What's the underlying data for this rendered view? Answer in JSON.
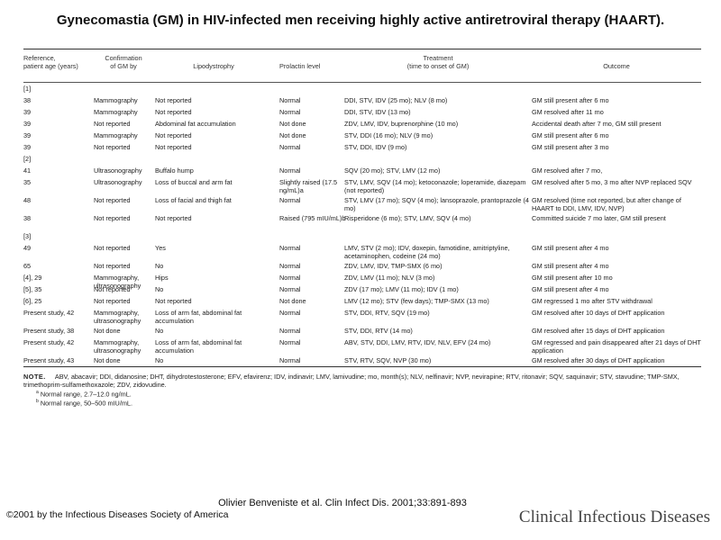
{
  "title": "Gynecomastia (GM) in HIV-infected men receiving highly active antiretroviral therapy (HAART).",
  "table": {
    "headers": {
      "ref": [
        "Reference,",
        "patient age (years)"
      ],
      "confirm": [
        "Confirmation",
        "of GM by"
      ],
      "lipo": "Lipodystrophy",
      "prolactin": "Prolactin level",
      "treatment": [
        "Treatment",
        "(time to onset of GM)"
      ],
      "outcome": "Outcome"
    },
    "rows": [
      {
        "ref": "[1]",
        "group": true
      },
      {
        "ref": "38",
        "confirm": "Mammography",
        "lipo": "Not reported",
        "prolactin": "Normal",
        "treatment": "DDI, STV, IDV (25 mo); NLV (8 mo)",
        "outcome": "GM still present after 6 mo"
      },
      {
        "ref": "39",
        "confirm": "Mammography",
        "lipo": "Not reported",
        "prolactin": "Normal",
        "treatment": "DDI, STV, IDV (13 mo)",
        "outcome": "GM resolved after 11 mo"
      },
      {
        "ref": "39",
        "confirm": "Not reported",
        "lipo": "Abdominal fat accumulation",
        "prolactin": "Not done",
        "treatment": "ZDV, LMV, IDV, buprenorphine (10 mo)",
        "outcome": "Accidental death after 7 mo, GM still present"
      },
      {
        "ref": "39",
        "confirm": "Mammography",
        "lipo": "Not reported",
        "prolactin": "Not done",
        "treatment": "STV, DDI (16 mo); NLV (9 mo)",
        "outcome": "GM still present after 6 mo"
      },
      {
        "ref": "39",
        "confirm": "Not reported",
        "lipo": "Not reported",
        "prolactin": "Normal",
        "treatment": "STV, DDI, IDV (9 mo)",
        "outcome": "GM still present after 3 mo"
      },
      {
        "ref": "[2]",
        "group": true
      },
      {
        "ref": "41",
        "confirm": "Ultrasonography",
        "lipo": "Buffalo hump",
        "prolactin": "Normal",
        "treatment": "SQV (20 mo); STV, LMV (12 mo)",
        "outcome": "GM resolved after 7 mo,"
      },
      {
        "ref": "35",
        "confirm": "Ultrasonography",
        "lipo": "Loss of buccal and arm fat",
        "prolactin": "Slightly raised (17.5 ng/mL)a",
        "treatment": "STV, LMV, SQV (14 mo); ketoconazole; loperamide, diazepam (not reported)",
        "outcome": "GM resolved after 5 mo, 3 mo after NVP replaced SQV"
      },
      {
        "ref": "48",
        "confirm": "Not reported",
        "lipo": "Loss of facial and thigh fat",
        "prolactin": "Normal",
        "treatment": "STV, LMV (17 mo); SQV (4 mo); lansoprazole, prantoprazole (4 mo)",
        "outcome": "GM resolved (time not reported, but after change of HAART to DDI, LMV, IDV, NVP)"
      },
      {
        "ref": "38",
        "confirm": "Not reported",
        "lipo": "Not reported",
        "prolactin": "Raised (795 mIU/mL)b",
        "treatment": "Risperidone (6 mo); STV, LMV, SQV (4 mo)",
        "outcome": "Committed suicide 7 mo later, GM still present"
      },
      {
        "ref": "[3]",
        "group": true
      },
      {
        "ref": "49",
        "confirm": "Not reported",
        "lipo": "Yes",
        "prolactin": "Normal",
        "treatment": "LMV, STV (2 mo); IDV, doxepin, famotidine, amitriptyline, acetaminophen, codeine (24 mo)",
        "outcome": "GM still present after 4 mo"
      },
      {
        "ref": "65",
        "confirm": "Not reported",
        "lipo": "No",
        "prolactin": "Normal",
        "treatment": "ZDV, LMV, IDV, TMP-SMX (6 mo)",
        "outcome": "GM still present after 4 mo"
      },
      {
        "ref": "[4], 29",
        "confirm": "Mammography, ultrasonography",
        "lipo": "Hips",
        "prolactin": "Normal",
        "treatment": "ZDV, LMV (11 mo); NLV (3 mo)",
        "outcome": "GM still present after 10 mo"
      },
      {
        "ref": "[5], 35",
        "confirm": "Not reported",
        "lipo": "No",
        "prolactin": "Normal",
        "treatment": "ZDV (17 mo); LMV (11 mo); IDV (1 mo)",
        "outcome": "GM still present after 4 mo"
      },
      {
        "ref": "[6], 25",
        "confirm": "Not reported",
        "lipo": "Not reported",
        "prolactin": "Not done",
        "treatment": "LMV (12 mo); STV (few days); TMP-SMX (13 mo)",
        "outcome": "GM regressed 1 mo after STV withdrawal"
      },
      {
        "ref": "Present study, 42",
        "confirm": "Mammography, ultrasonography",
        "lipo": "Loss of arm fat, abdominal fat accumulation",
        "prolactin": "Normal",
        "treatment": "STV, DDI, RTV, SQV (19 mo)",
        "outcome": "GM resolved after 10 days of DHT application"
      },
      {
        "ref": "Present study, 38",
        "confirm": "Not done",
        "lipo": "No",
        "prolactin": "Normal",
        "treatment": "STV, DDI, RTV (14 mo)",
        "outcome": "GM resolved after 15 days of DHT application"
      },
      {
        "ref": "Present study, 42",
        "confirm": "Mammography, ultrasonography",
        "lipo": "Loss of arm fat, abdominal fat accumulation",
        "prolactin": "Normal",
        "treatment": "ABV, STV, DDI, LMV, RTV, IDV, NLV, EFV (24 mo)",
        "outcome": "GM regressed and pain disappeared after 21 days of DHT application"
      },
      {
        "ref": "Present study, 43",
        "confirm": "Not done",
        "lipo": "No",
        "prolactin": "Normal",
        "treatment": "STV, RTV, SQV, NVP (30 mo)",
        "outcome": "GM resolved after 30 days of DHT application"
      }
    ],
    "note_label": "NOTE.",
    "note_text": "ABV, abacavir; DDI, didanosine; DHT, dihydrotestosterone; EFV, efavirenz; IDV, indinavir; LMV, lamivudine; mo, month(s); NLV, nelfinavir; NVP, nevirapine; RTV, ritonavir; SQV, saquinavir; STV, stavudine; TMP-SMX, trimethoprim-sulfamethoxazole; ZDV, zidovudine.",
    "footnotes": [
      {
        "mark": "a",
        "text": "Normal range, 2.7–12.0 ng/mL."
      },
      {
        "mark": "b",
        "text": "Normal range, 50–500 mIU/mL."
      }
    ]
  },
  "source": "Olivier Benveniste et al. Clin Infect Dis. 2001;33:891-893",
  "copyright": "©2001 by the Infectious Diseases Society of America",
  "journal": "Clinical Infectious Diseases"
}
